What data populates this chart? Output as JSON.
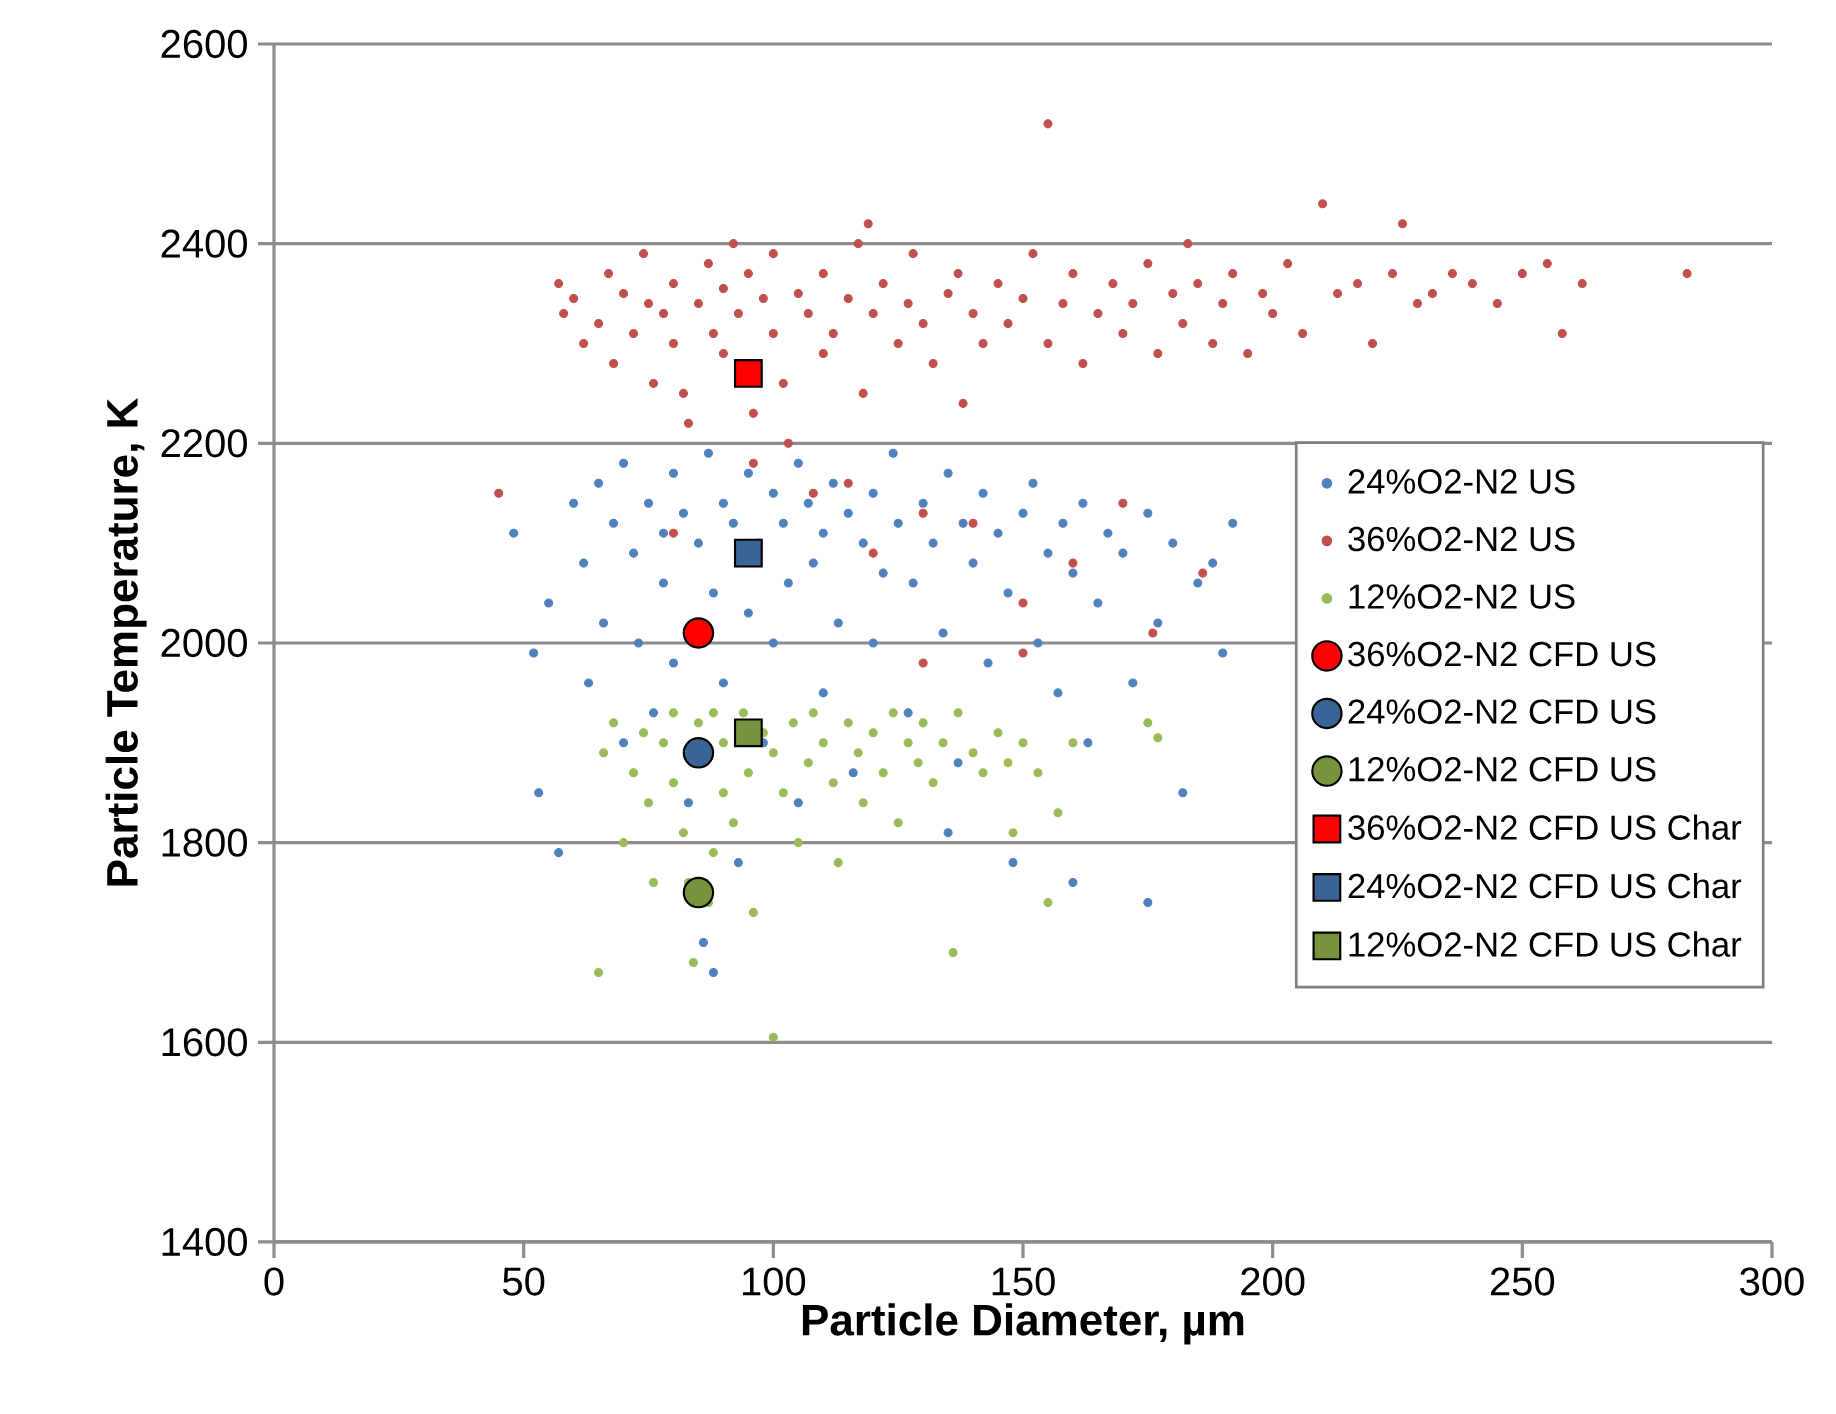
{
  "chart_data": {
    "type": "scatter",
    "xlabel": "Particle Diameter, µm",
    "ylabel": "Particle Temperature, K",
    "xlim": [
      0,
      300
    ],
    "xticks": [
      0,
      50,
      100,
      150,
      200,
      250,
      300
    ],
    "ylim": [
      1400,
      2600
    ],
    "yticks": [
      1400,
      1600,
      1800,
      2000,
      2200,
      2400,
      2600
    ],
    "grid": "y",
    "legend": "right",
    "series": [
      {
        "name": "24%O2-N2 US",
        "color": "#4f81bd",
        "marker": "circle",
        "x": [
          48,
          52,
          53,
          55,
          57,
          60,
          62,
          63,
          65,
          66,
          68,
          70,
          70,
          72,
          73,
          75,
          76,
          78,
          78,
          80,
          80,
          82,
          83,
          85,
          86,
          87,
          88,
          88,
          90,
          90,
          92,
          93,
          95,
          95,
          97,
          98,
          100,
          100,
          102,
          103,
          105,
          105,
          107,
          108,
          110,
          110,
          112,
          113,
          115,
          116,
          118,
          120,
          120,
          122,
          124,
          125,
          127,
          128,
          130,
          132,
          134,
          135,
          137,
          138,
          140,
          142,
          143,
          145,
          147,
          148,
          150,
          152,
          153,
          155,
          157,
          158,
          160,
          162,
          163,
          165,
          167,
          170,
          172,
          175,
          177,
          180,
          182,
          185,
          188,
          190,
          192,
          175,
          160,
          135
        ],
        "values": [
          2110,
          1990,
          1850,
          2040,
          1790,
          2140,
          2080,
          1960,
          2160,
          2020,
          2120,
          1900,
          2180,
          2090,
          2000,
          2140,
          1930,
          2110,
          2060,
          2170,
          1980,
          2130,
          1840,
          2100,
          1700,
          2190,
          2050,
          1670,
          2140,
          1960,
          2120,
          1780,
          2170,
          2030,
          2100,
          1900,
          2150,
          2000,
          2120,
          2060,
          2180,
          1840,
          2140,
          2080,
          2110,
          1950,
          2160,
          2020,
          2130,
          1870,
          2100,
          2150,
          2000,
          2070,
          2190,
          2120,
          1930,
          2060,
          2140,
          2100,
          2010,
          2170,
          1880,
          2120,
          2080,
          2150,
          1980,
          2110,
          2050,
          1780,
          2130,
          2160,
          2000,
          2090,
          1950,
          2120,
          2070,
          2140,
          1900,
          2040,
          2110,
          2090,
          1960,
          2130,
          2020,
          2100,
          1850,
          2060,
          2080,
          1990,
          2120,
          1740,
          1760,
          1810
        ]
      },
      {
        "name": "36%O2-N2 US",
        "color": "#c0504d",
        "marker": "circle",
        "x": [
          45,
          57,
          58,
          60,
          62,
          65,
          67,
          68,
          70,
          72,
          74,
          75,
          76,
          78,
          80,
          80,
          82,
          83,
          85,
          87,
          88,
          90,
          90,
          92,
          93,
          95,
          96,
          98,
          100,
          100,
          102,
          103,
          105,
          107,
          108,
          110,
          110,
          112,
          115,
          117,
          118,
          119,
          120,
          122,
          125,
          127,
          128,
          130,
          132,
          135,
          137,
          138,
          140,
          142,
          145,
          147,
          150,
          152,
          155,
          155,
          158,
          160,
          162,
          165,
          168,
          170,
          172,
          175,
          177,
          180,
          182,
          183,
          185,
          188,
          190,
          192,
          195,
          198,
          200,
          203,
          206,
          210,
          213,
          217,
          220,
          224,
          226,
          229,
          232,
          236,
          240,
          245,
          250,
          255,
          258,
          262,
          283,
          96,
          115,
          120,
          130,
          140,
          150,
          160,
          170,
          176,
          186,
          150,
          130,
          80
        ],
        "values": [
          2150,
          2360,
          2330,
          2345,
          2300,
          2320,
          2370,
          2280,
          2350,
          2310,
          2390,
          2340,
          2260,
          2330,
          2300,
          2360,
          2250,
          2220,
          2340,
          2380,
          2310,
          2290,
          2355,
          2400,
          2330,
          2370,
          2230,
          2345,
          2310,
          2390,
          2260,
          2200,
          2350,
          2330,
          2150,
          2370,
          2290,
          2310,
          2345,
          2400,
          2250,
          2420,
          2330,
          2360,
          2300,
          2340,
          2390,
          2320,
          2280,
          2350,
          2370,
          2240,
          2330,
          2300,
          2360,
          2320,
          2345,
          2390,
          2520,
          2300,
          2340,
          2370,
          2280,
          2330,
          2360,
          2310,
          2340,
          2380,
          2290,
          2350,
          2320,
          2400,
          2360,
          2300,
          2340,
          2370,
          2290,
          2350,
          2330,
          2380,
          2310,
          2440,
          2350,
          2360,
          2300,
          2370,
          2420,
          2340,
          2350,
          2370,
          2360,
          2340,
          2370,
          2380,
          2310,
          2360,
          2370,
          2180,
          2160,
          2090,
          2130,
          2120,
          2040,
          2080,
          2140,
          2010,
          2070,
          1990,
          1980,
          2110
        ]
      },
      {
        "name": "12%O2-N2 US",
        "color": "#9bbb59",
        "marker": "circle",
        "x": [
          65,
          66,
          68,
          70,
          72,
          74,
          75,
          76,
          78,
          80,
          80,
          82,
          83,
          84,
          85,
          86,
          88,
          88,
          90,
          90,
          92,
          94,
          95,
          96,
          98,
          100,
          100,
          102,
          104,
          105,
          107,
          108,
          110,
          112,
          113,
          115,
          117,
          118,
          120,
          122,
          124,
          125,
          127,
          129,
          130,
          132,
          134,
          136,
          137,
          140,
          142,
          145,
          147,
          148,
          150,
          153,
          155,
          157,
          160,
          175,
          177,
          87
        ],
        "values": [
          1670,
          1890,
          1920,
          1800,
          1870,
          1910,
          1840,
          1760,
          1900,
          1930,
          1860,
          1810,
          1760,
          1680,
          1920,
          1880,
          1790,
          1930,
          1900,
          1850,
          1820,
          1930,
          1870,
          1730,
          1910,
          1890,
          1605,
          1850,
          1920,
          1800,
          1880,
          1930,
          1900,
          1860,
          1780,
          1920,
          1890,
          1840,
          1910,
          1870,
          1930,
          1820,
          1900,
          1880,
          1920,
          1860,
          1900,
          1690,
          1930,
          1890,
          1870,
          1910,
          1880,
          1810,
          1900,
          1870,
          1740,
          1830,
          1900,
          1920,
          1905,
          1740
        ]
      },
      {
        "name": "36%O2-N2 CFD US",
        "color": "#ff0000",
        "marker": "circle",
        "x": [
          85
        ],
        "values": [
          2010
        ]
      },
      {
        "name": "24%O2-N2 CFD US",
        "color": "#3a6496",
        "marker": "circle",
        "x": [
          85
        ],
        "values": [
          1890
        ]
      },
      {
        "name": "12%O2-N2 CFD US",
        "color": "#77933c",
        "marker": "circle",
        "x": [
          85
        ],
        "values": [
          1750
        ]
      },
      {
        "name": "36%O2-N2 CFD US Char",
        "color": "#ff0000",
        "marker": "square",
        "x": [
          95
        ],
        "values": [
          2270
        ]
      },
      {
        "name": "24%O2-N2 CFD US Char",
        "color": "#3a6496",
        "marker": "square",
        "x": [
          95
        ],
        "values": [
          2090
        ]
      },
      {
        "name": "12%O2-N2 CFD US Char",
        "color": "#77933c",
        "marker": "square",
        "x": [
          95
        ],
        "values": [
          1910
        ]
      }
    ]
  }
}
